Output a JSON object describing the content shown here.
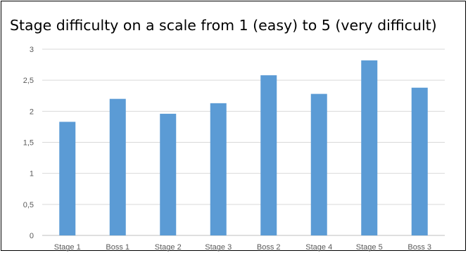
{
  "chart_data": {
    "type": "bar",
    "title": "Stage difficulty on a scale from 1 (easy) to 5 (very difficult)",
    "xlabel": "",
    "ylabel": "",
    "categories": [
      "Stage 1",
      "Boss 1",
      "Stage 2",
      "Stage 3",
      "Boss 2",
      "Stage 4",
      "Stage 5",
      "Boss 3"
    ],
    "values": [
      1.83,
      2.2,
      1.96,
      2.13,
      2.58,
      2.28,
      2.82,
      2.38
    ],
    "ylim": [
      0,
      3
    ],
    "yticks": [
      "0",
      "0,5",
      "1",
      "1,5",
      "2",
      "2,5",
      "3"
    ],
    "grid": true,
    "legend": "none",
    "bar_color": "#5B9BD5",
    "grid_color": "#D9D9D9"
  }
}
